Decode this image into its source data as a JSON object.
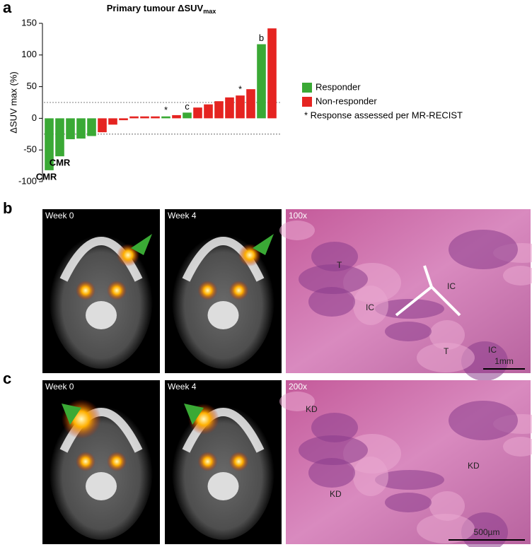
{
  "chart_data": {
    "type": "bar",
    "title": "Primary tumour ΔSUV",
    "title_sub": "max",
    "y_label": "ΔSUV max (%)",
    "categories": [
      null,
      null,
      null,
      null,
      null,
      null,
      null,
      null,
      null,
      null,
      null,
      null,
      null,
      null,
      null,
      null,
      null,
      null,
      null,
      null,
      null,
      null
    ],
    "series": [
      {
        "name": "Responder",
        "color": "#3aa935",
        "values": [
          -82,
          -60,
          -33,
          -32,
          -28,
          null,
          null,
          null,
          null,
          null,
          null,
          3,
          null,
          9,
          null,
          null,
          null,
          null,
          null,
          null,
          117,
          null
        ]
      },
      {
        "name": "Non-responder",
        "color": "#e52421",
        "values": [
          null,
          null,
          null,
          null,
          null,
          -22,
          -10,
          -3,
          3,
          3,
          3,
          null,
          5,
          null,
          17,
          22,
          27,
          33,
          36,
          46,
          null,
          142
        ]
      }
    ],
    "bar_labels": [
      "CMR",
      "CMR",
      null,
      null,
      null,
      null,
      null,
      null,
      null,
      null,
      null,
      "*",
      null,
      "c",
      null,
      null,
      null,
      null,
      "*",
      null,
      "b",
      null
    ],
    "legend_note": "*  Response assessed per MR-RECIST",
    "reference_lines": [
      25,
      -25
    ],
    "ylim": [
      -100,
      150
    ],
    "yticks": [
      -100,
      -50,
      0,
      50,
      100,
      150
    ]
  },
  "panel_labels": [
    "a",
    "b",
    "c"
  ],
  "panel_b": {
    "image_labels": [
      "Week 0",
      "Week 4",
      "100x"
    ],
    "tissue_labels": [
      "T",
      "IC",
      "IC",
      "T",
      "IC"
    ],
    "scale_bar": "1mm"
  },
  "panel_c": {
    "image_labels": [
      "Week 0",
      "Week 4",
      "200x"
    ],
    "tissue_labels": [
      "KD",
      "KD",
      "KD"
    ],
    "scale_bar": "500µm"
  }
}
